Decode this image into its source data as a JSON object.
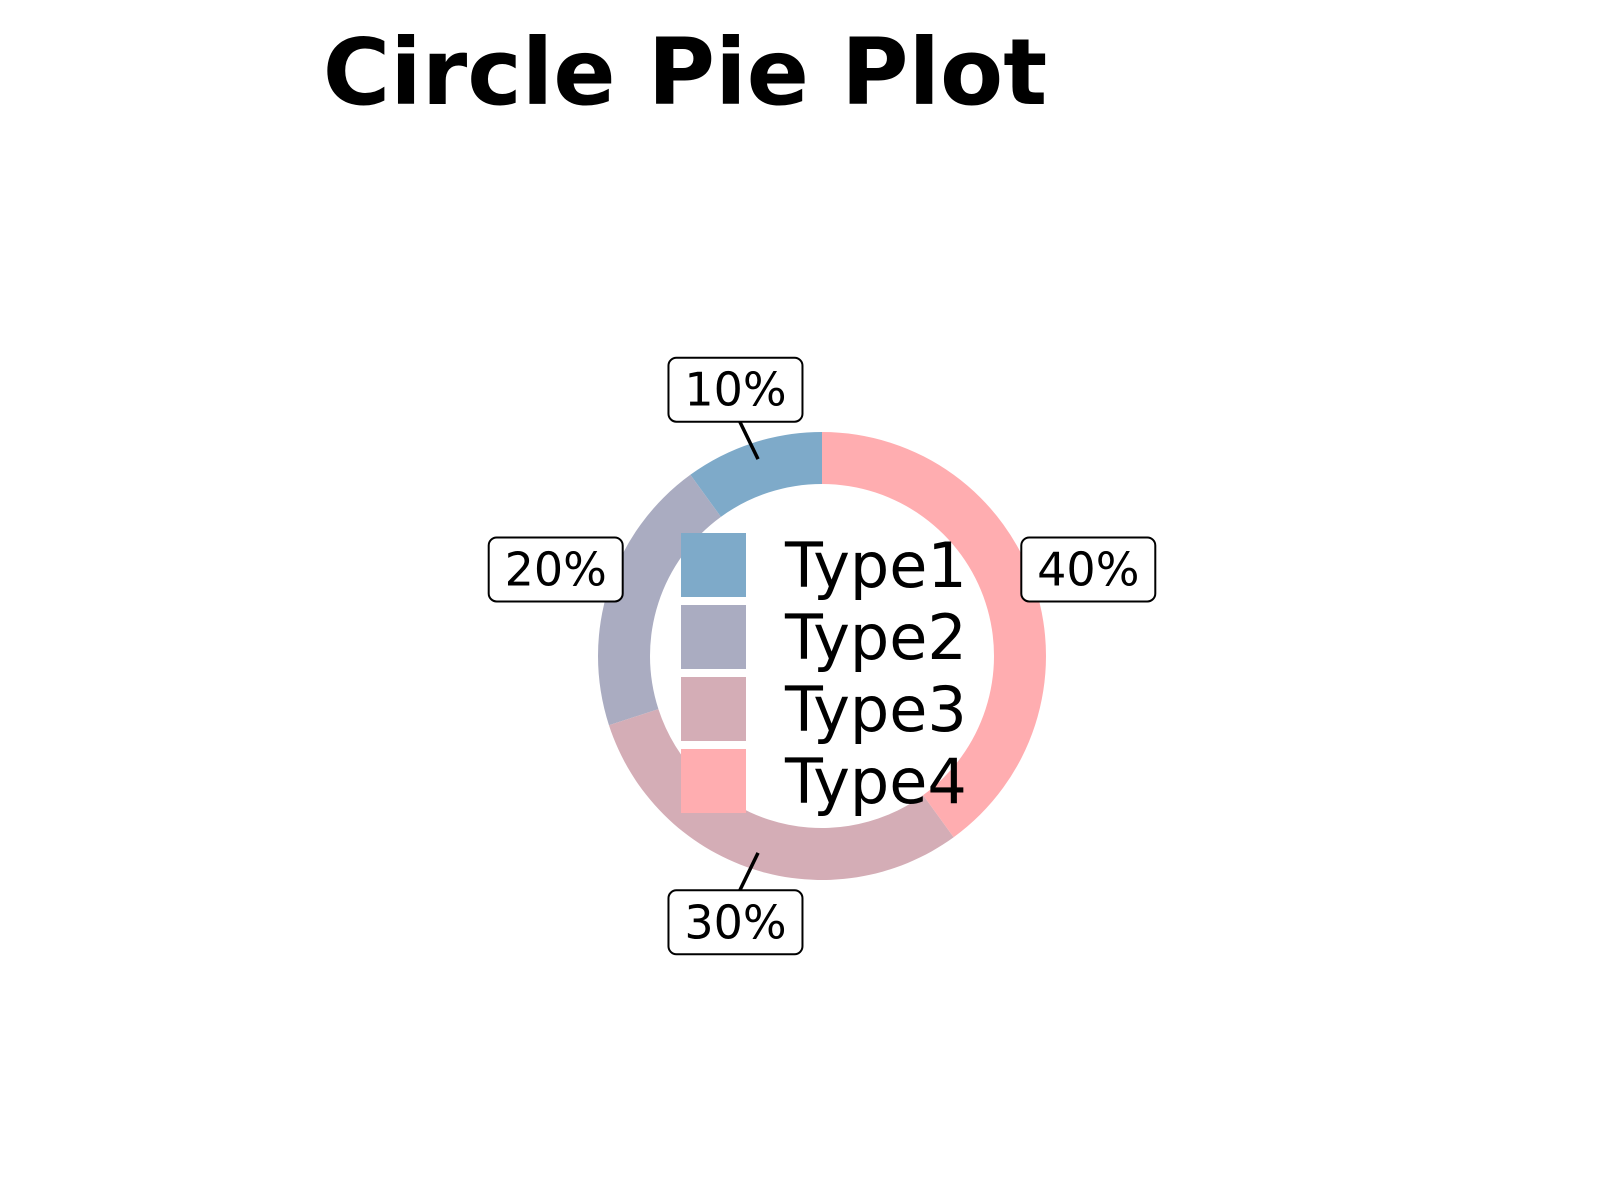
{
  "chart_data": {
    "type": "pie",
    "style": "donut",
    "title": "Circle Pie Plot",
    "start_angle_deg": 90,
    "direction": "counterclockwise",
    "legend_position": "center",
    "slices": [
      {
        "name": "Type1",
        "value": 10,
        "label": "10%",
        "color": "#7eaac9"
      },
      {
        "name": "Type2",
        "value": 20,
        "label": "20%",
        "color": "#aaacc1"
      },
      {
        "name": "Type3",
        "value": 30,
        "label": "30%",
        "color": "#d4adb6"
      },
      {
        "name": "Type4",
        "value": 40,
        "label": "40%",
        "color": "#ffadb0"
      }
    ]
  }
}
